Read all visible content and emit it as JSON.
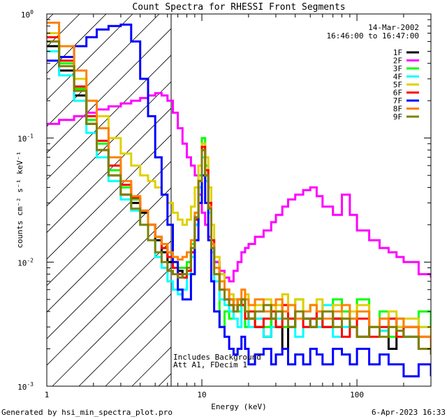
{
  "chart_data": {
    "type": "line",
    "title": "Count Spectra for RHESSI Front Segments",
    "xlabel": "Energy (keV)",
    "ylabel": "counts cm⁻² s⁻¹ keV⁻¹",
    "xscale": "log",
    "yscale": "log",
    "xlim": [
      1,
      300
    ],
    "ylim": [
      0.001,
      1
    ],
    "x_ticks": [
      {
        "value": 1,
        "label": "1"
      },
      {
        "value": 10,
        "label": "10"
      },
      {
        "value": 100,
        "label": "100"
      }
    ],
    "y_ticks": [
      {
        "value": 1,
        "base": "10",
        "exp": "0"
      },
      {
        "value": 0.1,
        "base": "10",
        "exp": "-1"
      },
      {
        "value": 0.01,
        "base": "10",
        "exp": "-2"
      },
      {
        "value": 0.001,
        "base": "10",
        "exp": "-3"
      }
    ],
    "date": "14-Mar-2002",
    "time_range": "16:46:00 to 16:47:00",
    "hatched_region_keV": [
      1,
      6
    ],
    "annotation_lines": [
      "Includes Background",
      "Att A1, FDecim 1"
    ],
    "legend_position": "top-right",
    "series": [
      {
        "name": "1F",
        "color": "#000000",
        "x": [
          1.0,
          1.2,
          1.5,
          1.8,
          2.1,
          2.5,
          3.0,
          3.5,
          4.0,
          4.5,
          5.0,
          5.5,
          6.0,
          6.5,
          7.0,
          7.5,
          8.0,
          8.5,
          9.0,
          9.5,
          10.0,
          10.5,
          11.0,
          11.5,
          12.0,
          13,
          14,
          15,
          16,
          17,
          18,
          19,
          20,
          22,
          25,
          28,
          30,
          33,
          36,
          40,
          45,
          50,
          55,
          60,
          70,
          80,
          90,
          100,
          120,
          140,
          160,
          180,
          200,
          250,
          300
        ],
        "y": [
          0.55,
          0.35,
          0.22,
          0.13,
          0.08,
          0.05,
          0.035,
          0.03,
          0.025,
          0.02,
          0.015,
          0.012,
          0.01,
          0.009,
          0.0085,
          0.008,
          0.009,
          0.012,
          0.02,
          0.04,
          0.08,
          0.05,
          0.03,
          0.015,
          0.01,
          0.008,
          0.006,
          0.005,
          0.004,
          0.0045,
          0.005,
          0.004,
          0.0035,
          0.003,
          0.0025,
          0.0035,
          0.003,
          0.002,
          0.003,
          0.004,
          0.0035,
          0.003,
          0.004,
          0.003,
          0.0035,
          0.004,
          0.003,
          0.0025,
          0.003,
          0.0028,
          0.002,
          0.003,
          0.0025,
          0.002,
          0.0018
        ]
      },
      {
        "name": "2F",
        "color": "#ff00ff",
        "x": [
          1.0,
          1.2,
          1.5,
          1.8,
          2.1,
          2.5,
          3.0,
          3.5,
          4.0,
          4.5,
          5.0,
          5.5,
          6.0,
          6.5,
          7.0,
          7.5,
          8.0,
          8.5,
          9.0,
          9.5,
          10.0,
          10.5,
          11.0,
          11.5,
          12.0,
          13,
          14,
          15,
          16,
          17,
          18,
          19,
          20,
          22,
          25,
          28,
          30,
          33,
          36,
          40,
          45,
          50,
          55,
          60,
          70,
          80,
          90,
          100,
          120,
          140,
          160,
          180,
          200,
          250,
          300
        ],
        "y": [
          0.13,
          0.14,
          0.15,
          0.16,
          0.17,
          0.18,
          0.19,
          0.2,
          0.21,
          0.22,
          0.23,
          0.22,
          0.2,
          0.16,
          0.12,
          0.09,
          0.07,
          0.06,
          0.05,
          0.035,
          0.025,
          0.02,
          0.016,
          0.013,
          0.01,
          0.0085,
          0.0075,
          0.007,
          0.0085,
          0.01,
          0.012,
          0.013,
          0.014,
          0.016,
          0.018,
          0.021,
          0.024,
          0.028,
          0.032,
          0.035,
          0.038,
          0.04,
          0.034,
          0.028,
          0.024,
          0.035,
          0.024,
          0.018,
          0.015,
          0.013,
          0.012,
          0.011,
          0.01,
          0.008,
          0.0075
        ]
      },
      {
        "name": "3F",
        "color": "#00ff00",
        "x": [
          1.0,
          1.2,
          1.5,
          1.8,
          2.1,
          2.5,
          3.0,
          3.5,
          4.0,
          4.5,
          5.0,
          5.5,
          6.0,
          6.5,
          7.0,
          7.5,
          8.0,
          8.5,
          9.0,
          9.5,
          10.0,
          10.5,
          11.0,
          11.5,
          12.0,
          13,
          14,
          15,
          16,
          17,
          18,
          19,
          20,
          22,
          25,
          28,
          30,
          33,
          36,
          40,
          45,
          50,
          55,
          60,
          70,
          80,
          90,
          100,
          120,
          140,
          160,
          180,
          200,
          250,
          300
        ],
        "y": [
          0.6,
          0.4,
          0.25,
          0.14,
          0.09,
          0.055,
          0.04,
          0.032,
          0.026,
          0.02,
          0.016,
          0.013,
          0.011,
          0.01,
          0.009,
          0.009,
          0.01,
          0.014,
          0.025,
          0.05,
          0.1,
          0.06,
          0.03,
          0.015,
          0.008,
          0.003,
          0.004,
          0.0035,
          0.005,
          0.004,
          0.0045,
          0.003,
          0.004,
          0.0035,
          0.003,
          0.0045,
          0.004,
          0.003,
          0.0035,
          0.005,
          0.004,
          0.0045,
          0.0035,
          0.003,
          0.005,
          0.004,
          0.0035,
          0.005,
          0.003,
          0.004,
          0.0025,
          0.0035,
          0.003,
          0.004,
          0.002
        ]
      },
      {
        "name": "4F",
        "color": "#00ffff",
        "x": [
          1.0,
          1.2,
          1.5,
          1.8,
          2.1,
          2.5,
          3.0,
          3.5,
          4.0,
          4.5,
          5.0,
          5.5,
          6.0,
          6.5,
          7.0,
          7.5,
          8.0,
          8.5,
          9.0,
          9.5,
          10.0,
          10.5,
          11.0,
          11.5,
          12.0,
          13,
          14,
          15,
          16,
          17,
          18,
          19,
          20,
          22,
          25,
          28,
          30,
          33,
          36,
          40,
          45,
          50,
          55,
          60,
          70,
          80,
          90,
          100,
          120,
          140,
          160,
          180,
          200,
          250,
          300
        ],
        "y": [
          0.5,
          0.32,
          0.2,
          0.11,
          0.07,
          0.045,
          0.032,
          0.026,
          0.02,
          0.015,
          0.011,
          0.009,
          0.007,
          0.006,
          0.0055,
          0.006,
          0.008,
          0.011,
          0.02,
          0.04,
          0.07,
          0.045,
          0.025,
          0.012,
          0.007,
          0.005,
          0.0045,
          0.004,
          0.0035,
          0.003,
          0.0045,
          0.004,
          0.003,
          0.0035,
          0.0025,
          0.003,
          0.0035,
          0.004,
          0.003,
          0.0025,
          0.003,
          0.0035,
          0.003,
          0.0045,
          0.0025,
          0.003,
          0.0035,
          0.004,
          0.003,
          0.0028,
          0.0035,
          0.003,
          0.0025,
          0.003,
          0.002
        ]
      },
      {
        "name": "5F",
        "color": "#e0d000",
        "x": [
          1.0,
          1.2,
          1.5,
          1.8,
          2.1,
          2.5,
          3.0,
          3.5,
          4.0,
          4.5,
          5.0,
          5.5,
          6.0,
          6.5,
          7.0,
          7.5,
          8.0,
          8.5,
          9.0,
          9.5,
          10.0,
          10.5,
          11.0,
          11.5,
          12.0,
          13,
          14,
          15,
          16,
          17,
          18,
          19,
          20,
          22,
          25,
          28,
          30,
          33,
          36,
          40,
          45,
          50,
          55,
          60,
          70,
          80,
          90,
          100,
          120,
          140,
          160,
          180,
          200,
          250,
          300
        ],
        "y": [
          0.7,
          0.45,
          0.3,
          0.2,
          0.15,
          0.1,
          0.075,
          0.06,
          0.05,
          0.045,
          0.04,
          0.035,
          0.03,
          0.025,
          0.022,
          0.02,
          0.022,
          0.028,
          0.04,
          0.06,
          0.09,
          0.07,
          0.04,
          0.02,
          0.011,
          0.008,
          0.006,
          0.0055,
          0.005,
          0.0045,
          0.005,
          0.0055,
          0.004,
          0.0045,
          0.005,
          0.004,
          0.0045,
          0.0055,
          0.0045,
          0.005,
          0.004,
          0.0045,
          0.005,
          0.004,
          0.0045,
          0.0035,
          0.004,
          0.0045,
          0.003,
          0.0035,
          0.004,
          0.003,
          0.0035,
          0.003,
          0.0025
        ]
      },
      {
        "name": "6F",
        "color": "#ff0000",
        "x": [
          1.0,
          1.2,
          1.5,
          1.8,
          2.1,
          2.5,
          3.0,
          3.5,
          4.0,
          4.5,
          5.0,
          5.5,
          6.0,
          6.5,
          7.0,
          7.5,
          8.0,
          8.5,
          9.0,
          9.5,
          10.0,
          10.5,
          11.0,
          11.5,
          12.0,
          13,
          14,
          15,
          16,
          17,
          18,
          19,
          20,
          22,
          25,
          28,
          30,
          33,
          36,
          40,
          45,
          50,
          55,
          60,
          70,
          80,
          90,
          100,
          120,
          140,
          160,
          180,
          200,
          250,
          300
        ],
        "y": [
          0.65,
          0.42,
          0.26,
          0.15,
          0.095,
          0.06,
          0.042,
          0.033,
          0.026,
          0.02,
          0.016,
          0.013,
          0.011,
          0.009,
          0.008,
          0.0075,
          0.0085,
          0.012,
          0.022,
          0.045,
          0.085,
          0.055,
          0.03,
          0.015,
          0.009,
          0.006,
          0.005,
          0.0045,
          0.004,
          0.005,
          0.0045,
          0.0035,
          0.004,
          0.003,
          0.0035,
          0.004,
          0.003,
          0.0045,
          0.0035,
          0.004,
          0.003,
          0.0035,
          0.004,
          0.003,
          0.0035,
          0.0025,
          0.003,
          0.0035,
          0.0025,
          0.003,
          0.0035,
          0.0025,
          0.003,
          0.0025,
          0.002
        ]
      },
      {
        "name": "7F",
        "color": "#0000ff",
        "x": [
          1.0,
          1.2,
          1.5,
          1.8,
          2.1,
          2.5,
          3.0,
          3.5,
          4.0,
          4.5,
          5.0,
          5.5,
          6.0,
          6.5,
          7.0,
          7.5,
          8.0,
          8.5,
          9.0,
          9.5,
          10.0,
          10.5,
          11.0,
          11.5,
          12.0,
          13,
          14,
          15,
          16,
          17,
          18,
          19,
          20,
          22,
          25,
          28,
          30,
          33,
          36,
          40,
          45,
          50,
          55,
          60,
          70,
          80,
          90,
          100,
          120,
          140,
          160,
          180,
          200,
          250,
          300
        ],
        "y": [
          0.42,
          0.45,
          0.55,
          0.65,
          0.75,
          0.8,
          0.82,
          0.6,
          0.3,
          0.15,
          0.07,
          0.035,
          0.02,
          0.01,
          0.006,
          0.005,
          0.005,
          0.008,
          0.015,
          0.03,
          0.05,
          0.03,
          0.015,
          0.007,
          0.004,
          0.003,
          0.0025,
          0.002,
          0.0018,
          0.002,
          0.0025,
          0.002,
          0.0015,
          0.0018,
          0.002,
          0.0015,
          0.0018,
          0.002,
          0.0015,
          0.0018,
          0.0015,
          0.002,
          0.0018,
          0.0015,
          0.002,
          0.0018,
          0.0015,
          0.002,
          0.0015,
          0.0018,
          0.0015,
          0.0015,
          0.0012,
          0.0015,
          0.0012
        ]
      },
      {
        "name": "8F",
        "color": "#ff8000",
        "x": [
          1.0,
          1.2,
          1.5,
          1.8,
          2.1,
          2.5,
          3.0,
          3.5,
          4.0,
          4.5,
          5.0,
          5.5,
          6.0,
          6.5,
          7.0,
          7.5,
          8.0,
          8.5,
          9.0,
          9.5,
          10.0,
          10.5,
          11.0,
          11.5,
          12.0,
          13,
          14,
          15,
          16,
          17,
          18,
          19,
          20,
          22,
          25,
          28,
          30,
          33,
          36,
          40,
          45,
          50,
          55,
          60,
          70,
          80,
          90,
          100,
          120,
          140,
          160,
          180,
          200,
          250,
          300
        ],
        "y": [
          0.85,
          0.55,
          0.35,
          0.2,
          0.12,
          0.07,
          0.045,
          0.034,
          0.026,
          0.02,
          0.016,
          0.014,
          0.012,
          0.011,
          0.0105,
          0.011,
          0.012,
          0.015,
          0.025,
          0.045,
          0.08,
          0.05,
          0.028,
          0.014,
          0.009,
          0.007,
          0.006,
          0.005,
          0.0045,
          0.005,
          0.006,
          0.005,
          0.0045,
          0.005,
          0.004,
          0.0045,
          0.005,
          0.004,
          0.0045,
          0.0035,
          0.004,
          0.0045,
          0.004,
          0.0035,
          0.004,
          0.0045,
          0.0035,
          0.004,
          0.003,
          0.0035,
          0.003,
          0.0035,
          0.003,
          0.0025,
          0.002
        ]
      },
      {
        "name": "9F",
        "color": "#808000",
        "x": [
          1.0,
          1.2,
          1.5,
          1.8,
          2.1,
          2.5,
          3.0,
          3.5,
          4.0,
          4.5,
          5.0,
          5.5,
          6.0,
          6.5,
          7.0,
          7.5,
          8.0,
          8.5,
          9.0,
          9.5,
          10.0,
          10.5,
          11.0,
          11.5,
          12.0,
          13,
          14,
          15,
          16,
          17,
          18,
          19,
          20,
          22,
          25,
          28,
          30,
          33,
          36,
          40,
          45,
          50,
          55,
          60,
          70,
          80,
          90,
          100,
          120,
          140,
          160,
          180,
          200,
          250,
          300
        ],
        "y": [
          0.6,
          0.38,
          0.24,
          0.13,
          0.08,
          0.05,
          0.035,
          0.027,
          0.02,
          0.015,
          0.012,
          0.01,
          0.0085,
          0.008,
          0.0075,
          0.008,
          0.009,
          0.013,
          0.023,
          0.045,
          0.08,
          0.05,
          0.027,
          0.013,
          0.008,
          0.006,
          0.005,
          0.0045,
          0.004,
          0.0045,
          0.005,
          0.004,
          0.0035,
          0.004,
          0.0045,
          0.0035,
          0.004,
          0.0035,
          0.003,
          0.004,
          0.0035,
          0.003,
          0.0035,
          0.004,
          0.003,
          0.0035,
          0.003,
          0.0025,
          0.003,
          0.0025,
          0.003,
          0.0028,
          0.0025,
          0.002,
          0.0018
        ]
      }
    ]
  },
  "footer": {
    "generated_by": "Generated by hsi_min_spectra_plot.pro",
    "timestamp": "6-Apr-2023 16:33"
  }
}
